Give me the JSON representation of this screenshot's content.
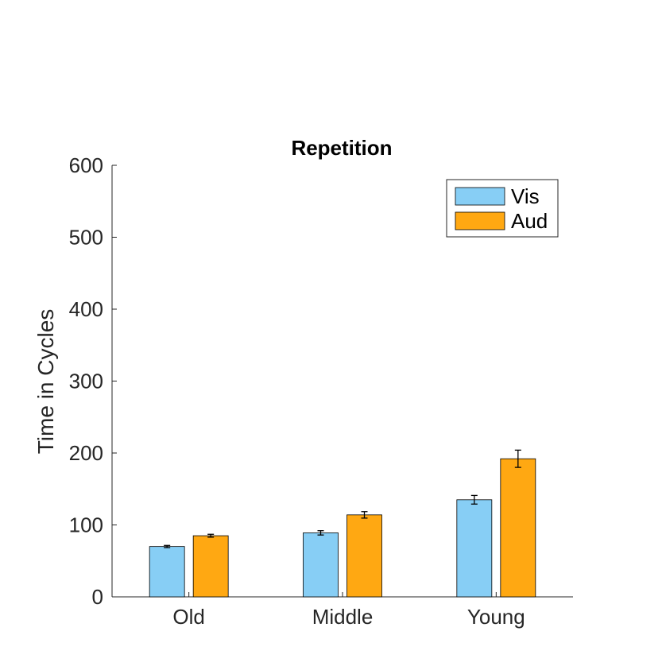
{
  "chart_data": {
    "type": "bar",
    "title": "Repetition",
    "xlabel": "",
    "ylabel": "Time in Cycles",
    "categories": [
      "Old",
      "Middle",
      "Young"
    ],
    "ylim": [
      0,
      600
    ],
    "yticks": [
      0,
      100,
      200,
      300,
      400,
      500,
      600
    ],
    "grid": false,
    "legend_position": "top-right",
    "series": [
      {
        "name": "Vis",
        "color": "#87CEF5",
        "values": [
          70,
          89,
          135
        ],
        "errors": [
          1.5,
          3,
          6
        ]
      },
      {
        "name": "Aud",
        "color": "#FFA812",
        "values": [
          85,
          114,
          192
        ],
        "errors": [
          2,
          4.5,
          12
        ]
      }
    ]
  }
}
